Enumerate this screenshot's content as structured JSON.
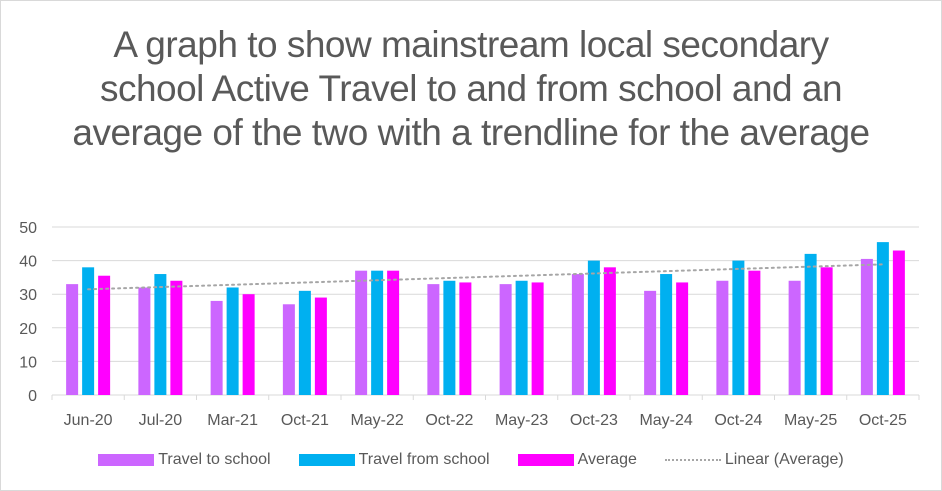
{
  "chart_data": {
    "type": "bar",
    "title": "A graph to show mainstream local secondary school Active Travel to and from school and an average of the two with a trendline for the average",
    "categories": [
      "Jun-20",
      "Jul-20",
      "Mar-21",
      "Oct-21",
      "May-22",
      "Oct-22",
      "May-23",
      "Oct-23",
      "May-24",
      "Oct-24",
      "May-25",
      "Oct-25"
    ],
    "series": [
      {
        "name": "Travel to school",
        "color": "#cc66ff",
        "values": [
          33,
          32,
          28,
          27,
          37,
          33,
          33,
          36,
          31,
          34,
          34,
          40.5
        ]
      },
      {
        "name": "Travel from school",
        "color": "#00b0f0",
        "values": [
          38,
          36,
          32,
          31,
          37,
          34,
          34,
          40,
          36,
          40,
          42,
          45.5
        ]
      },
      {
        "name": "Average",
        "color": "#ff00ff",
        "values": [
          35.5,
          34,
          30,
          29,
          37,
          33.5,
          33.5,
          38,
          33.5,
          37,
          38,
          43
        ]
      }
    ],
    "trendline": {
      "name": "Linear (Average)",
      "of": "Average",
      "type": "linear",
      "color": "#a6a6a6"
    },
    "ylim": [
      0,
      50
    ],
    "yticks": [
      "0",
      "10",
      "20",
      "30",
      "40",
      "50"
    ],
    "xlabel": "",
    "ylabel": "",
    "grid": true,
    "legend": "bottom"
  }
}
